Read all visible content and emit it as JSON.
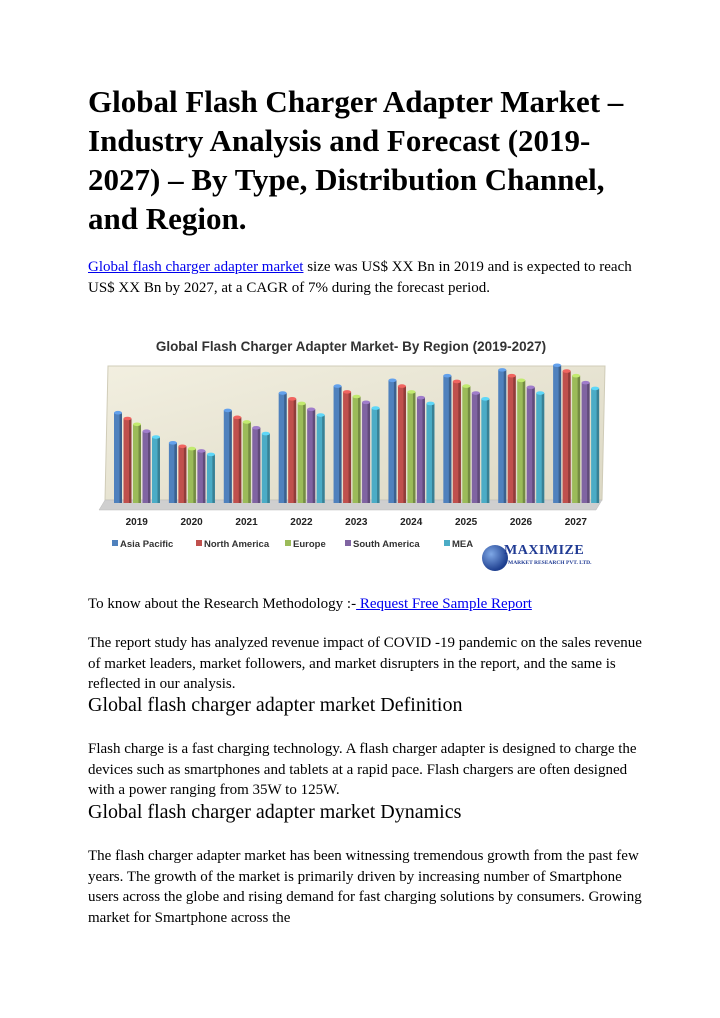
{
  "title": "Global Flash Charger Adapter Market – Industry Analysis and Forecast (2019-2027) – By Type, Distribution Channel, and Region.",
  "intro": {
    "link_text": "Global flash charger adapter market",
    "text": " size was US$ XX Bn in 2019 and is expected to reach US$ XX Bn by 2027, at a CAGR of 7% during the forecast period."
  },
  "chart_data": {
    "type": "bar",
    "title": "Global Flash Charger Adapter Market- By Region (2019-2027)",
    "categories": [
      "2019",
      "2020",
      "2021",
      "2022",
      "2023",
      "2024",
      "2025",
      "2026",
      "2027"
    ],
    "series": [
      {
        "name": "Asia Pacific",
        "color": "#4f81bd",
        "values": [
          78,
          52,
          80,
          95,
          101,
          106,
          110,
          115,
          119
        ]
      },
      {
        "name": "North America",
        "color": "#c0504d",
        "values": [
          73,
          49,
          74,
          90,
          96,
          101,
          105,
          110,
          114
        ]
      },
      {
        "name": "Europe",
        "color": "#9bbb59",
        "values": [
          68,
          47,
          70,
          86,
          92,
          96,
          101,
          106,
          110
        ]
      },
      {
        "name": "South America",
        "color": "#8064a2",
        "values": [
          62,
          45,
          65,
          81,
          87,
          91,
          95,
          100,
          104
        ]
      },
      {
        "name": "MEA",
        "color": "#4bacc6",
        "values": [
          57,
          42,
          60,
          76,
          82,
          86,
          90,
          95,
          99
        ]
      }
    ],
    "ylim": [
      0,
      130
    ],
    "grid": false,
    "legend": "bottom"
  },
  "logo": {
    "brand": "MAXIMIZE",
    "tagline": "MARKET RESEARCH PVT. LTD."
  },
  "methodology": {
    "prefix": "To know about the Research Methodology :-",
    "link_text": " Request Free Sample Report"
  },
  "covid_paragraph": "The report study has analyzed revenue impact of COVID -19 pandemic on the sales revenue of market leaders, market followers, and market disrupters in the report, and the same is reflected in our analysis.",
  "definition": {
    "heading": "Global flash charger adapter market Definition",
    "text": "Flash charge is a fast charging technology. A flash charger adapter is designed to charge the devices such as smartphones and tablets at a rapid pace. Flash chargers are often designed with a power ranging from 35W to 125W."
  },
  "dynamics": {
    "heading": "Global flash charger adapter market Dynamics",
    "text": "The flash charger adapter market has been witnessing tremendous growth from the past few years. The growth of the market is primarily driven by increasing number of Smartphone users across the globe and rising demand for fast charging solutions by consumers. Growing market for Smartphone across the"
  }
}
